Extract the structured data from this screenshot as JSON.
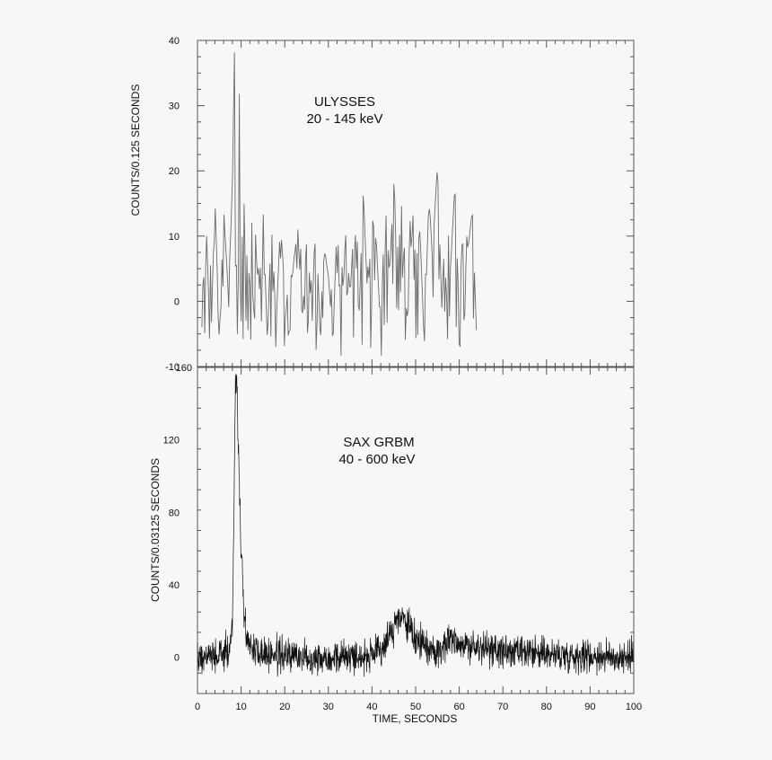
{
  "chart_data": [
    {
      "type": "line",
      "panel": "top",
      "title": "ULYSSES",
      "subtitle": "20 - 145 keV",
      "ylabel": "COUNTS/0.125 SECONDS",
      "xlabel": "",
      "xlim": [
        0,
        100
      ],
      "ylim": [
        -10,
        40
      ],
      "yticks": [
        -10,
        0,
        10,
        20,
        30,
        40
      ],
      "grid": false,
      "line_color": "#6b6b6b",
      "series": [
        {
          "x": [
            1,
            2,
            3,
            4,
            5,
            6,
            7,
            7.5,
            8,
            8.5,
            9,
            9.5,
            10,
            10.5,
            11,
            12,
            13,
            14,
            15,
            16,
            17,
            18,
            19,
            20,
            21,
            22,
            23,
            24,
            25,
            26,
            27,
            28,
            29,
            30,
            31,
            32,
            33,
            34,
            35,
            36,
            37,
            38,
            39,
            40,
            41,
            42,
            43,
            44,
            45,
            46,
            47,
            48,
            49,
            50,
            51,
            52,
            53,
            54,
            55,
            56,
            57,
            58,
            59,
            60,
            61,
            62,
            63,
            64
          ],
          "values": [
            -4,
            12,
            -8,
            16,
            -6,
            14,
            2,
            8,
            18,
            39,
            20,
            35,
            15,
            20,
            6,
            9,
            16,
            -2,
            15,
            -6,
            13,
            -4,
            12,
            2,
            -7,
            6,
            11,
            -3,
            9,
            0,
            10,
            -5,
            8,
            4,
            -6,
            12,
            -2,
            11,
            1,
            14,
            -3,
            17,
            0,
            13,
            9,
            -5,
            16,
            4,
            18,
            7,
            17,
            -4,
            18,
            6,
            11,
            -7,
            15,
            9,
            21,
            -1,
            16,
            5,
            18,
            -2,
            15,
            8,
            14,
            -6
          ]
        }
      ]
    },
    {
      "type": "line",
      "panel": "bottom",
      "title": "SAX GRBM",
      "subtitle": "40 - 600 keV",
      "ylabel": "COUNTS/0.03125 SECONDS",
      "xlabel": "TIME, SECONDS",
      "xlim": [
        0,
        100
      ],
      "ylim": [
        -20,
        160
      ],
      "yticks": [
        0,
        40,
        80,
        120,
        160
      ],
      "xticks": [
        0,
        10,
        20,
        30,
        40,
        50,
        60,
        70,
        80,
        90,
        100
      ],
      "grid": false,
      "line_color": "#111111",
      "series": [
        {
          "x": [
            0,
            2,
            4,
            6,
            7,
            7.5,
            8,
            8.3,
            8.6,
            9,
            9.3,
            9.6,
            10,
            10.3,
            10.6,
            11,
            11.5,
            12,
            13,
            15,
            20,
            25,
            30,
            35,
            40,
            42,
            44,
            45,
            46,
            47,
            48,
            49,
            50,
            52,
            54,
            55,
            56,
            57,
            58,
            59,
            60,
            62,
            65,
            70,
            75,
            80,
            85,
            90,
            95,
            100
          ],
          "values": [
            0,
            1,
            0,
            2,
            3,
            8,
            20,
            65,
            140,
            160,
            120,
            95,
            55,
            45,
            30,
            18,
            10,
            6,
            4,
            2,
            1,
            0,
            0,
            1,
            0,
            4,
            12,
            17,
            20,
            22,
            18,
            14,
            10,
            6,
            4,
            3,
            5,
            9,
            11,
            10,
            8,
            6,
            5,
            3,
            2,
            2,
            1,
            1,
            0,
            0
          ]
        }
      ]
    }
  ]
}
